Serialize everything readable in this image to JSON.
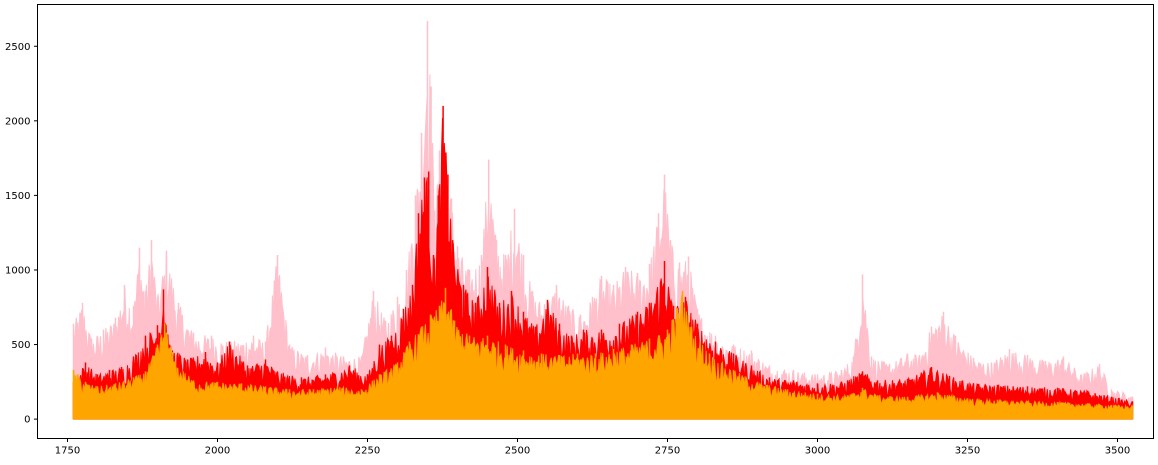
{
  "chart_data": {
    "type": "line",
    "title": "",
    "xlabel": "",
    "ylabel": "",
    "xlim": [
      1700,
      3560
    ],
    "ylim": [
      -130,
      2780
    ],
    "xticks": [
      1750,
      2000,
      2250,
      2500,
      2750,
      3000,
      3250,
      3500
    ],
    "yticks": [
      0,
      500,
      1000,
      1500,
      2000,
      2500
    ],
    "grid": false,
    "legend": "none",
    "x_range": [
      1760,
      3525
    ],
    "series": [
      {
        "color": "#ffc0cb",
        "fill_to_zero": true,
        "samples": [
          {
            "x": 1760,
            "y": 640
          },
          {
            "x": 1775,
            "y": 780
          },
          {
            "x": 1790,
            "y": 540
          },
          {
            "x": 1810,
            "y": 600
          },
          {
            "x": 1830,
            "y": 680
          },
          {
            "x": 1845,
            "y": 900
          },
          {
            "x": 1860,
            "y": 760
          },
          {
            "x": 1870,
            "y": 1150
          },
          {
            "x": 1880,
            "y": 860
          },
          {
            "x": 1890,
            "y": 1200
          },
          {
            "x": 1900,
            "y": 820
          },
          {
            "x": 1915,
            "y": 1130
          },
          {
            "x": 1935,
            "y": 780
          },
          {
            "x": 1960,
            "y": 580
          },
          {
            "x": 1990,
            "y": 560
          },
          {
            "x": 2020,
            "y": 520
          },
          {
            "x": 2060,
            "y": 560
          },
          {
            "x": 2080,
            "y": 520
          },
          {
            "x": 2100,
            "y": 1100
          },
          {
            "x": 2120,
            "y": 500
          },
          {
            "x": 2150,
            "y": 430
          },
          {
            "x": 2180,
            "y": 480
          },
          {
            "x": 2210,
            "y": 420
          },
          {
            "x": 2240,
            "y": 420
          },
          {
            "x": 2260,
            "y": 860
          },
          {
            "x": 2280,
            "y": 660
          },
          {
            "x": 2300,
            "y": 820
          },
          {
            "x": 2315,
            "y": 1000
          },
          {
            "x": 2330,
            "y": 1500
          },
          {
            "x": 2340,
            "y": 1920
          },
          {
            "x": 2350,
            "y": 2670
          },
          {
            "x": 2356,
            "y": 2230
          },
          {
            "x": 2362,
            "y": 1400
          },
          {
            "x": 2370,
            "y": 1800
          },
          {
            "x": 2380,
            "y": 1790
          },
          {
            "x": 2390,
            "y": 1480
          },
          {
            "x": 2400,
            "y": 1160
          },
          {
            "x": 2420,
            "y": 1000
          },
          {
            "x": 2440,
            "y": 1100
          },
          {
            "x": 2452,
            "y": 1740
          },
          {
            "x": 2465,
            "y": 1200
          },
          {
            "x": 2480,
            "y": 1100
          },
          {
            "x": 2495,
            "y": 1410
          },
          {
            "x": 2510,
            "y": 1100
          },
          {
            "x": 2525,
            "y": 860
          },
          {
            "x": 2545,
            "y": 770
          },
          {
            "x": 2565,
            "y": 900
          },
          {
            "x": 2585,
            "y": 760
          },
          {
            "x": 2605,
            "y": 700
          },
          {
            "x": 2625,
            "y": 820
          },
          {
            "x": 2640,
            "y": 960
          },
          {
            "x": 2660,
            "y": 900
          },
          {
            "x": 2680,
            "y": 1020
          },
          {
            "x": 2700,
            "y": 980
          },
          {
            "x": 2720,
            "y": 1040
          },
          {
            "x": 2735,
            "y": 1380
          },
          {
            "x": 2745,
            "y": 1640
          },
          {
            "x": 2755,
            "y": 1200
          },
          {
            "x": 2770,
            "y": 1050
          },
          {
            "x": 2785,
            "y": 1090
          },
          {
            "x": 2800,
            "y": 740
          },
          {
            "x": 2830,
            "y": 560
          },
          {
            "x": 2860,
            "y": 500
          },
          {
            "x": 2890,
            "y": 460
          },
          {
            "x": 2920,
            "y": 360
          },
          {
            "x": 2960,
            "y": 330
          },
          {
            "x": 3000,
            "y": 300
          },
          {
            "x": 3040,
            "y": 330
          },
          {
            "x": 3060,
            "y": 420
          },
          {
            "x": 3075,
            "y": 970
          },
          {
            "x": 3090,
            "y": 420
          },
          {
            "x": 3120,
            "y": 370
          },
          {
            "x": 3150,
            "y": 440
          },
          {
            "x": 3170,
            "y": 430
          },
          {
            "x": 3190,
            "y": 620
          },
          {
            "x": 3210,
            "y": 720
          },
          {
            "x": 3230,
            "y": 560
          },
          {
            "x": 3260,
            "y": 410
          },
          {
            "x": 3290,
            "y": 380
          },
          {
            "x": 3320,
            "y": 470
          },
          {
            "x": 3350,
            "y": 430
          },
          {
            "x": 3380,
            "y": 390
          },
          {
            "x": 3410,
            "y": 420
          },
          {
            "x": 3440,
            "y": 300
          },
          {
            "x": 3470,
            "y": 370
          },
          {
            "x": 3490,
            "y": 200
          },
          {
            "x": 3510,
            "y": 180
          },
          {
            "x": 3525,
            "y": 150
          }
        ]
      },
      {
        "color": "#ff0000",
        "fill_to_zero": true,
        "samples": [
          {
            "x": 1760,
            "y": 250
          },
          {
            "x": 1780,
            "y": 380
          },
          {
            "x": 1800,
            "y": 300
          },
          {
            "x": 1820,
            "y": 330
          },
          {
            "x": 1840,
            "y": 350
          },
          {
            "x": 1860,
            "y": 420
          },
          {
            "x": 1880,
            "y": 560
          },
          {
            "x": 1900,
            "y": 630
          },
          {
            "x": 1910,
            "y": 870
          },
          {
            "x": 1920,
            "y": 500
          },
          {
            "x": 1950,
            "y": 400
          },
          {
            "x": 1980,
            "y": 450
          },
          {
            "x": 2000,
            "y": 380
          },
          {
            "x": 2020,
            "y": 520
          },
          {
            "x": 2050,
            "y": 360
          },
          {
            "x": 2080,
            "y": 400
          },
          {
            "x": 2100,
            "y": 320
          },
          {
            "x": 2140,
            "y": 280
          },
          {
            "x": 2180,
            "y": 300
          },
          {
            "x": 2220,
            "y": 360
          },
          {
            "x": 2250,
            "y": 300
          },
          {
            "x": 2270,
            "y": 500
          },
          {
            "x": 2290,
            "y": 560
          },
          {
            "x": 2310,
            "y": 740
          },
          {
            "x": 2325,
            "y": 900
          },
          {
            "x": 2335,
            "y": 1380
          },
          {
            "x": 2345,
            "y": 1620
          },
          {
            "x": 2352,
            "y": 1660
          },
          {
            "x": 2360,
            "y": 1100
          },
          {
            "x": 2368,
            "y": 1500
          },
          {
            "x": 2376,
            "y": 2100
          },
          {
            "x": 2384,
            "y": 1640
          },
          {
            "x": 2392,
            "y": 1200
          },
          {
            "x": 2410,
            "y": 900
          },
          {
            "x": 2430,
            "y": 780
          },
          {
            "x": 2450,
            "y": 1020
          },
          {
            "x": 2470,
            "y": 780
          },
          {
            "x": 2490,
            "y": 860
          },
          {
            "x": 2510,
            "y": 720
          },
          {
            "x": 2530,
            "y": 620
          },
          {
            "x": 2550,
            "y": 800
          },
          {
            "x": 2570,
            "y": 640
          },
          {
            "x": 2590,
            "y": 560
          },
          {
            "x": 2610,
            "y": 600
          },
          {
            "x": 2640,
            "y": 600
          },
          {
            "x": 2670,
            "y": 640
          },
          {
            "x": 2700,
            "y": 720
          },
          {
            "x": 2720,
            "y": 780
          },
          {
            "x": 2745,
            "y": 1060
          },
          {
            "x": 2760,
            "y": 760
          },
          {
            "x": 2780,
            "y": 820
          },
          {
            "x": 2800,
            "y": 640
          },
          {
            "x": 2830,
            "y": 520
          },
          {
            "x": 2860,
            "y": 440
          },
          {
            "x": 2890,
            "y": 360
          },
          {
            "x": 2920,
            "y": 280
          },
          {
            "x": 2960,
            "y": 260
          },
          {
            "x": 3000,
            "y": 240
          },
          {
            "x": 3040,
            "y": 250
          },
          {
            "x": 3075,
            "y": 320
          },
          {
            "x": 3100,
            "y": 260
          },
          {
            "x": 3150,
            "y": 270
          },
          {
            "x": 3190,
            "y": 350
          },
          {
            "x": 3220,
            "y": 290
          },
          {
            "x": 3260,
            "y": 240
          },
          {
            "x": 3300,
            "y": 230
          },
          {
            "x": 3350,
            "y": 220
          },
          {
            "x": 3400,
            "y": 210
          },
          {
            "x": 3450,
            "y": 190
          },
          {
            "x": 3490,
            "y": 150
          },
          {
            "x": 3525,
            "y": 120
          }
        ]
      },
      {
        "color": "#ffa500",
        "fill_to_zero": true,
        "samples": [
          {
            "x": 1760,
            "y": 330
          },
          {
            "x": 1780,
            "y": 250
          },
          {
            "x": 1800,
            "y": 220
          },
          {
            "x": 1830,
            "y": 240
          },
          {
            "x": 1860,
            "y": 280
          },
          {
            "x": 1880,
            "y": 320
          },
          {
            "x": 1900,
            "y": 500
          },
          {
            "x": 1912,
            "y": 640
          },
          {
            "x": 1930,
            "y": 380
          },
          {
            "x": 1960,
            "y": 260
          },
          {
            "x": 2000,
            "y": 250
          },
          {
            "x": 2040,
            "y": 240
          },
          {
            "x": 2080,
            "y": 220
          },
          {
            "x": 2120,
            "y": 200
          },
          {
            "x": 2160,
            "y": 200
          },
          {
            "x": 2200,
            "y": 220
          },
          {
            "x": 2240,
            "y": 200
          },
          {
            "x": 2270,
            "y": 300
          },
          {
            "x": 2300,
            "y": 380
          },
          {
            "x": 2320,
            "y": 520
          },
          {
            "x": 2340,
            "y": 620
          },
          {
            "x": 2355,
            "y": 700
          },
          {
            "x": 2370,
            "y": 760
          },
          {
            "x": 2380,
            "y": 880
          },
          {
            "x": 2395,
            "y": 660
          },
          {
            "x": 2420,
            "y": 560
          },
          {
            "x": 2450,
            "y": 560
          },
          {
            "x": 2480,
            "y": 500
          },
          {
            "x": 2510,
            "y": 460
          },
          {
            "x": 2540,
            "y": 440
          },
          {
            "x": 2570,
            "y": 430
          },
          {
            "x": 2600,
            "y": 440
          },
          {
            "x": 2630,
            "y": 440
          },
          {
            "x": 2660,
            "y": 470
          },
          {
            "x": 2690,
            "y": 500
          },
          {
            "x": 2720,
            "y": 540
          },
          {
            "x": 2750,
            "y": 600
          },
          {
            "x": 2775,
            "y": 860
          },
          {
            "x": 2790,
            "y": 620
          },
          {
            "x": 2820,
            "y": 440
          },
          {
            "x": 2860,
            "y": 330
          },
          {
            "x": 2900,
            "y": 250
          },
          {
            "x": 2950,
            "y": 200
          },
          {
            "x": 3000,
            "y": 170
          },
          {
            "x": 3050,
            "y": 160
          },
          {
            "x": 3075,
            "y": 210
          },
          {
            "x": 3100,
            "y": 160
          },
          {
            "x": 3150,
            "y": 150
          },
          {
            "x": 3200,
            "y": 180
          },
          {
            "x": 3250,
            "y": 140
          },
          {
            "x": 3300,
            "y": 130
          },
          {
            "x": 3350,
            "y": 120
          },
          {
            "x": 3400,
            "y": 115
          },
          {
            "x": 3450,
            "y": 105
          },
          {
            "x": 3490,
            "y": 95
          },
          {
            "x": 3525,
            "y": 90
          }
        ]
      }
    ]
  }
}
